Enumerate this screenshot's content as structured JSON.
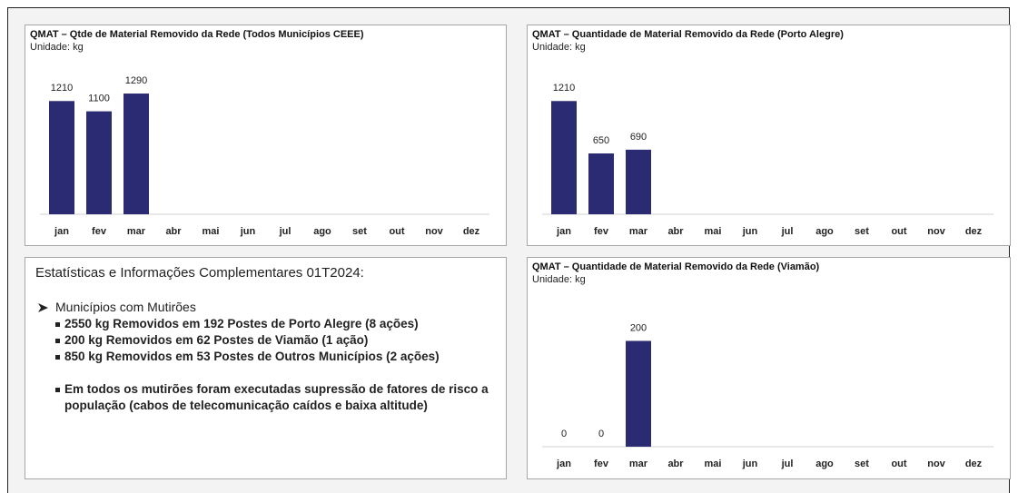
{
  "chart_data": [
    {
      "type": "bar",
      "title": "QMAT – Qtde de Material Removido da Rede (Todos Municípios CEEE)",
      "subtitle": "Unidade: kg",
      "categories": [
        "jan",
        "fev",
        "mar",
        "abr",
        "mai",
        "jun",
        "jul",
        "ago",
        "set",
        "out",
        "nov",
        "dez"
      ],
      "values": [
        1210,
        1100,
        1290,
        null,
        null,
        null,
        null,
        null,
        null,
        null,
        null,
        null
      ],
      "color": "#2b2b73",
      "ylim": [
        0,
        1300
      ]
    },
    {
      "type": "bar",
      "title": "QMAT – Quantidade de Material Removido da Rede (Porto Alegre)",
      "subtitle": "Unidade: kg",
      "categories": [
        "jan",
        "fev",
        "mar",
        "abr",
        "mai",
        "jun",
        "jul",
        "ago",
        "set",
        "out",
        "nov",
        "dez"
      ],
      "values": [
        1210,
        650,
        690,
        null,
        null,
        null,
        null,
        null,
        null,
        null,
        null,
        null
      ],
      "color": "#2b2b73",
      "ylim": [
        0,
        1300
      ]
    },
    {
      "type": "bar",
      "title": "QMAT – Quantidade de Material Removido da Rede (Viamão)",
      "subtitle": "Unidade: kg",
      "categories": [
        "jan",
        "fev",
        "mar",
        "abr",
        "mai",
        "jun",
        "jul",
        "ago",
        "set",
        "out",
        "nov",
        "dez"
      ],
      "values": [
        0,
        0,
        200,
        null,
        null,
        null,
        null,
        null,
        null,
        null,
        null,
        null
      ],
      "color": "#2b2b73",
      "ylim": [
        0,
        230
      ]
    }
  ],
  "notes": {
    "title": "Estatísticas e Informações Complementares 01T2024:",
    "heading": "Municípios com Mutirões",
    "items": [
      "2550 kg Removidos em 192 Postes de Porto Alegre (8 ações)",
      "200 kg Removidos em 62 Postes de Viamão (1 ação)",
      "850 kg Removidos em 53 Postes de Outros Municípios (2 ações)"
    ],
    "note": "Em todos os mutirões foram executadas supressão de fatores de risco a população (cabos de telecomunicação caídos e baixa altitude)"
  }
}
